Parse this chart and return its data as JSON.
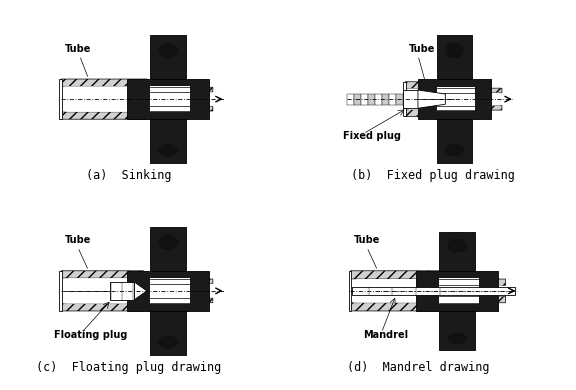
{
  "background_color": "#ffffff",
  "labels": {
    "a": "(a)  Sinking",
    "b": "(b)  Fixed plug drawing",
    "c": "(c)  Floating plug drawing",
    "d": "(d)  Mandrel drawing"
  },
  "sublabels": {
    "tube_a": "Tube",
    "tube_b": "Tube",
    "tube_c": "Tube",
    "tube_d": "Tube",
    "fixed_plug": "Fixed plug",
    "floating_plug": "Floating plug",
    "mandrel": "Mandrel"
  },
  "die_dark": "#1a1a1a",
  "die_mid": "#333333",
  "die_bump": "#2a2a2a",
  "tube_hatch_color": "#aaaaaa",
  "line_color": "#000000",
  "font_size_label": 8.5,
  "font_size_sublabel": 7.0
}
